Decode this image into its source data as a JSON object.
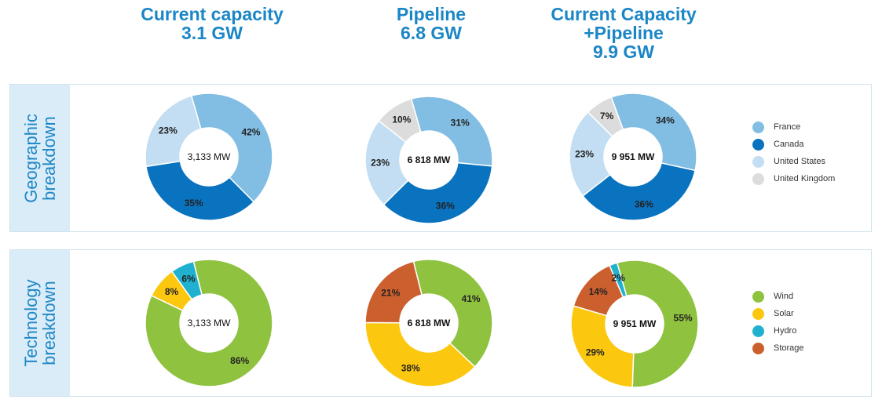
{
  "headers": [
    {
      "line1": "Current capacity",
      "line2": "3.1 GW"
    },
    {
      "line1": "Pipeline",
      "line2": "6.8 GW"
    },
    {
      "line1": "Current Capacity",
      "line2": "+Pipeline",
      "line3": "9.9 GW"
    }
  ],
  "rows": [
    {
      "line1": "Geographic",
      "line2": "breakdown"
    },
    {
      "line1": "Technology",
      "line2": "breakdown"
    }
  ],
  "legends": {
    "geographic": [
      {
        "label": "France",
        "color": "#82bde3"
      },
      {
        "label": "Canada",
        "color": "#0a73c0"
      },
      {
        "label": "United States",
        "color": "#c3def2"
      },
      {
        "label": "United Kingdom",
        "color": "#dcdcdc"
      }
    ],
    "technology": [
      {
        "label": "Wind",
        "color": "#8fc23f"
      },
      {
        "label": "Solar",
        "color": "#fcc70f"
      },
      {
        "label": "Hydro",
        "color": "#1fb1cf"
      },
      {
        "label": "Storage",
        "color": "#cc5f2e"
      }
    ]
  },
  "chart_data": [
    {
      "type": "pie",
      "row": "geographic",
      "col": 0,
      "center_label": "3,133 MW",
      "categories": [
        "France",
        "Canada",
        "United States"
      ],
      "values": [
        42,
        35,
        23
      ],
      "labels": [
        "42%",
        "35%",
        "23%"
      ]
    },
    {
      "type": "pie",
      "row": "geographic",
      "col": 1,
      "center_label": "6 818 MW",
      "categories": [
        "France",
        "Canada",
        "United States",
        "United Kingdom"
      ],
      "values": [
        31,
        36,
        23,
        10
      ],
      "labels": [
        "31%",
        "36%",
        "23%",
        "10%"
      ]
    },
    {
      "type": "pie",
      "row": "geographic",
      "col": 2,
      "center_label": "9 951 MW",
      "categories": [
        "France",
        "Canada",
        "United States",
        "United Kingdom"
      ],
      "values": [
        34,
        36,
        23,
        7
      ],
      "labels": [
        "34%",
        "36%",
        "23%",
        "7%"
      ]
    },
    {
      "type": "pie",
      "row": "technology",
      "col": 0,
      "center_label": "3,133 MW",
      "categories": [
        "Wind",
        "Solar",
        "Hydro"
      ],
      "values": [
        86,
        8,
        6
      ],
      "labels": [
        "86%",
        "8%",
        "6%"
      ]
    },
    {
      "type": "pie",
      "row": "technology",
      "col": 1,
      "center_label": "6 818 MW",
      "categories": [
        "Wind",
        "Solar",
        "Storage"
      ],
      "values": [
        41,
        38,
        21
      ],
      "labels": [
        "41%",
        "38%",
        "21%"
      ]
    },
    {
      "type": "pie",
      "row": "technology",
      "col": 2,
      "center_label": "9 951 MW",
      "categories": [
        "Wind",
        "Solar",
        "Storage",
        "Hydro"
      ],
      "values": [
        55,
        29,
        14,
        2
      ],
      "labels": [
        "55%",
        "29%",
        "14%",
        "2%"
      ]
    }
  ]
}
